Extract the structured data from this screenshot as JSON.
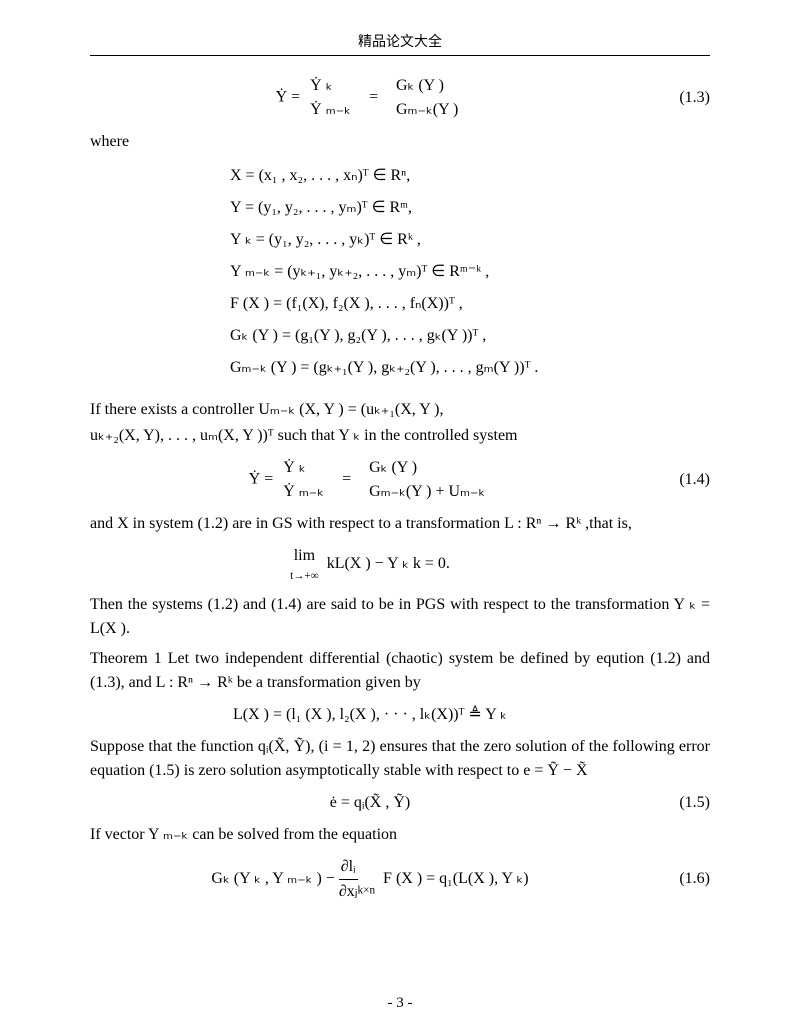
{
  "header": {
    "title": "精品论文大全"
  },
  "eq13": {
    "left": "Ẏ =",
    "col1": {
      "top": "Ẏ ₖ",
      "bot": "Ẏ ₘ₋ₖ"
    },
    "eq": "=",
    "col2": {
      "top": "Gₖ (Y )",
      "bot": "Gₘ₋ₖ(Y )"
    },
    "num": "(1.3)"
  },
  "where": "where",
  "defs": {
    "l1": "X  = (x₁ , x₂, . . . , xₙ)ᵀ   ∈ Rⁿ,",
    "l2": "Y  = (y₁, y₂, . . . , yₘ)ᵀ   ∈ Rᵐ,",
    "l3": "Y ₖ = (y₁, y₂, . . . , yₖ)ᵀ   ∈ Rᵏ ,",
    "l4": "Y ₘ₋ₖ  = (yₖ₊₁, yₖ₊₂, . . . , yₘ)ᵀ   ∈ Rᵐ⁻ᵏ ,",
    "l5": "F (X ) = (f₁(X), f₂(X ), . . . , fₙ(X))ᵀ ,",
    "l6": "Gₖ (Y ) = (g₁(Y ), g₂(Y ), . . . , gₖ(Y ))ᵀ ,",
    "l7": "Gₘ₋ₖ (Y ) = (gₖ₊₁(Y ), gₖ₊₂(Y ), . . . , gₘ(Y  ))ᵀ ."
  },
  "p1": {
    "l1": "If there exists a controller Uₘ₋ₖ (X,  Y ) = (uₖ₊₁(X, Y ),",
    "l2": "uₖ₊₂(X, Y), . . . , uₘ(X, Y ))ᵀ  such that Y ₖ  in the controlled system"
  },
  "eq14": {
    "left": "Ẏ =",
    "col1": {
      "top": "Ẏ ₖ",
      "bot": "Ẏ ₘ₋ₖ"
    },
    "eq": "=",
    "col2": {
      "top": "Gₖ (Y )",
      "bot": "Gₘ₋ₖ(Y ) + Uₘ₋ₖ"
    },
    "num": "(1.4)"
  },
  "p2": "and X  in system (1.2) are in GS with respect to a transformation L : Rⁿ  → Rᵏ  ,that is,",
  "eq_lim": {
    "lim": "lim",
    "cond": "t→+∞",
    "body": "kL(X ) − Y ₖ k = 0."
  },
  "p3": "Then  the systems (1.2) and (1.4) are said to be in PGS with respect to the trans­formation Y ₖ = L(X ).",
  "thm_head": "Theorem 1",
  "thm_body": " Let two independent differential (chaotic) system be defined by eqution (1.2) and (1.3), and L : Rⁿ  → Rᵏ  be a transformation given by",
  "eq_L": "L(X ) = (l₁ (X ), l₂(X ), · · · , lₖ(X))ᵀ ≜ Y ₖ",
  "p4": "Suppose that the function qᵢ(X̃, Ỹ), (i = 1, 2) ensures that the zero solution of the following error equation (1.5) is zero solution asymptotically stable with respect to e = Ỹ − X̃",
  "eq15": {
    "body": "ė = qᵢ(X̃ , Ỹ)",
    "num": "(1.5)"
  },
  "p5": "If vector Y ₘ₋ₖ  can be solved from the equation",
  "eq16": {
    "left": "Gₖ (Y ₖ , Y ₘ₋ₖ ) −",
    "frac": {
      "top": "∂lᵢ",
      "bot": "∂xⱼ"
    },
    "sub": "k×n",
    "right": "F (X ) = q₁(L(X ), Y ₖ)",
    "num": "(1.6)"
  },
  "footer": {
    "page": "- 3 -"
  }
}
